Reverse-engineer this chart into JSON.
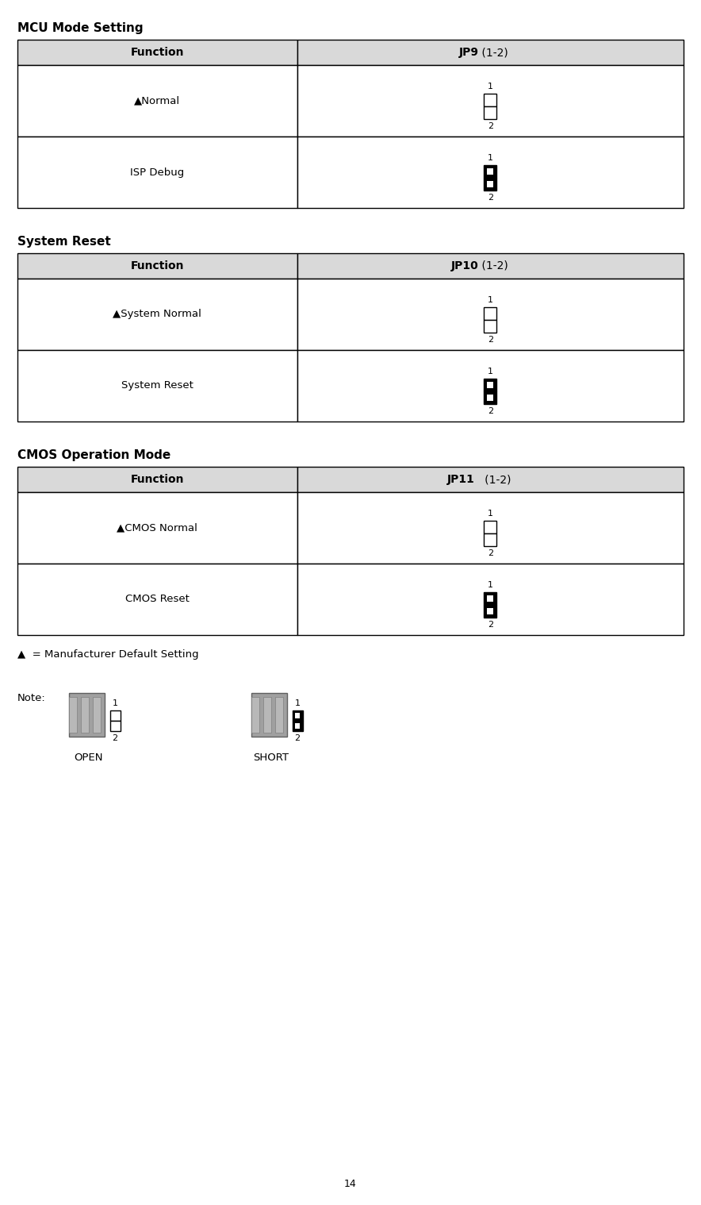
{
  "bg_color": "#ffffff",
  "page_number": "14",
  "sections": [
    {
      "title": "MCU Mode Setting",
      "header_col1": "Function",
      "header_col2": "JP9 (1-2)",
      "header_col2_bold": "JP9",
      "header_col2_rest": " (1-2)",
      "rows": [
        {
          "label": "▲Normal",
          "has_triangle": true,
          "pin_type": "open"
        },
        {
          "label": "ISP Debug",
          "has_triangle": false,
          "pin_type": "short"
        }
      ]
    },
    {
      "title": "System Reset",
      "header_col1": "Function",
      "header_col2": "JP10 (1-2)",
      "header_col2_bold": "JP10",
      "header_col2_rest": " (1-2)",
      "rows": [
        {
          "label": "▲System Normal",
          "has_triangle": true,
          "pin_type": "open"
        },
        {
          "label": "System Reset",
          "has_triangle": false,
          "pin_type": "short"
        }
      ]
    },
    {
      "title": "CMOS Operation Mode",
      "header_col1": "Function",
      "header_col2": "JP11   (1-2)",
      "header_col2_bold": "JP11",
      "header_col2_rest": "   (1-2)",
      "rows": [
        {
          "label": "▲CMOS Normal",
          "has_triangle": true,
          "pin_type": "open"
        },
        {
          "label": "CMOS Reset",
          "has_triangle": false,
          "pin_type": "short"
        }
      ]
    }
  ],
  "note_text": "Note:",
  "open_label": "OPEN",
  "short_label": "SHORT",
  "default_note": "▲  = Manufacturer Default Setting",
  "header_bg": "#d9d9d9",
  "border_color": "#000000",
  "title_fontsize": 11,
  "header_fontsize": 10,
  "cell_fontsize": 9.5,
  "note_fontsize": 9.5
}
